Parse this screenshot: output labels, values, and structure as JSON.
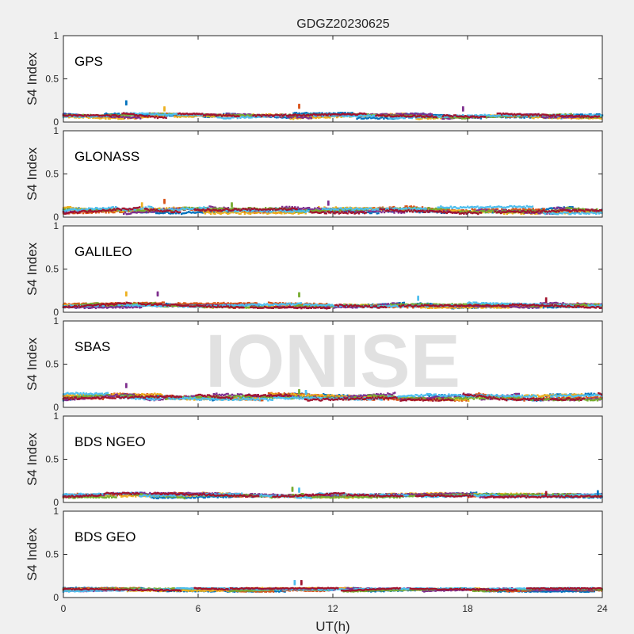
{
  "watermark": "IONISE",
  "chart_data": {
    "type": "scatter",
    "title": "GDGZ20230625",
    "xlabel": "UT(h)",
    "ylabel": "S4 Index",
    "xlim": [
      0,
      24
    ],
    "ylim": [
      0,
      1
    ],
    "xticks": [
      "0",
      "6",
      "12",
      "18",
      "24"
    ],
    "yticks": [
      "0",
      "0.5",
      "1"
    ],
    "grid": false,
    "series_colors": [
      "#0072BD",
      "#D95319",
      "#EDB120",
      "#7E2F8E",
      "#77AC30",
      "#4DBEEE",
      "#A2142F"
    ],
    "panels": [
      {
        "name": "GPS",
        "base": 0.07,
        "spread": 0.03,
        "peaks": [
          [
            2.8,
            0.24
          ],
          [
            10.5,
            0.2
          ],
          [
            4.5,
            0.17
          ],
          [
            17.8,
            0.17
          ]
        ]
      },
      {
        "name": "GLONASS",
        "base": 0.08,
        "spread": 0.04,
        "peaks": [
          [
            4.5,
            0.2
          ],
          [
            3.5,
            0.16
          ],
          [
            11.8,
            0.18
          ],
          [
            7.5,
            0.16
          ]
        ]
      },
      {
        "name": "GALILEO",
        "base": 0.08,
        "spread": 0.03,
        "peaks": [
          [
            2.8,
            0.23
          ],
          [
            4.2,
            0.23
          ],
          [
            10.5,
            0.22
          ],
          [
            15.8,
            0.18
          ],
          [
            21.5,
            0.16
          ]
        ]
      },
      {
        "name": "SBAS",
        "base": 0.12,
        "spread": 0.04,
        "peaks": [
          [
            2.8,
            0.27
          ],
          [
            10.5,
            0.2
          ],
          [
            10.8,
            0.19
          ]
        ]
      },
      {
        "name": "BDS NGEO",
        "base": 0.08,
        "spread": 0.03,
        "peaks": [
          [
            10.2,
            0.17
          ],
          [
            10.5,
            0.16
          ],
          [
            21.5,
            0.12
          ],
          [
            23.8,
            0.13
          ]
        ]
      },
      {
        "name": "BDS GEO",
        "base": 0.09,
        "spread": 0.02,
        "peaks": [
          [
            10.3,
            0.19
          ],
          [
            10.6,
            0.19
          ]
        ]
      }
    ]
  }
}
